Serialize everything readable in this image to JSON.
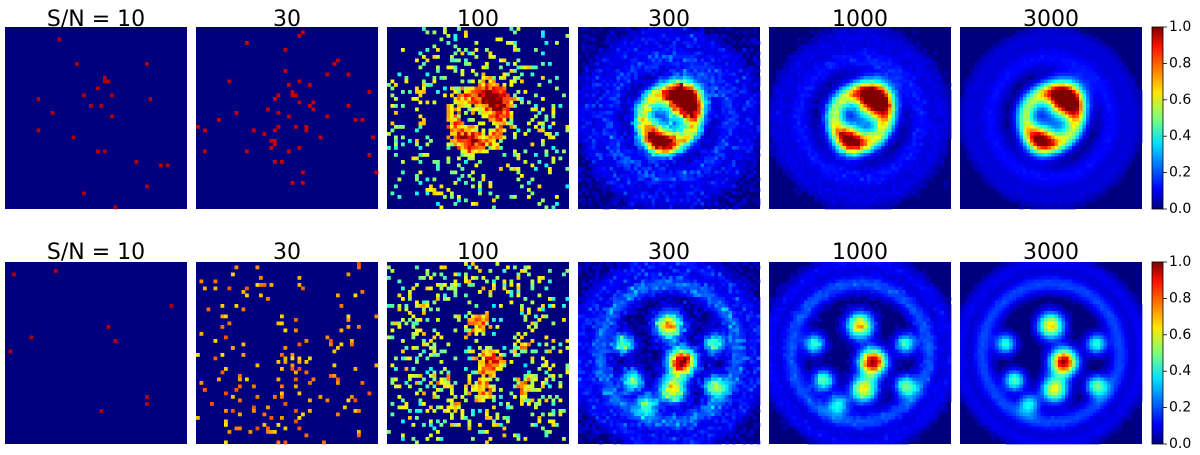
{
  "rows": [
    {
      "panels": [
        "S/N = 10",
        "30",
        "100",
        "300",
        "1000",
        "3000"
      ],
      "colorbar": {
        "range": [
          0,
          1
        ],
        "ticks": [
          {
            "value": 0,
            "label": "0.0"
          },
          {
            "value": 0.2,
            "label": "0.2"
          },
          {
            "value": 0.4,
            "label": "0.4"
          },
          {
            "value": 0.6,
            "label": "0.6"
          },
          {
            "value": 0.8,
            "label": "0.8"
          },
          {
            "value": 1,
            "label": "1.0"
          }
        ]
      }
    },
    {
      "panels": [
        "S/N = 10",
        "30",
        "100",
        "300",
        "1000",
        "3000"
      ],
      "colorbar": {
        "range": [
          0,
          1
        ],
        "ticks": [
          {
            "value": 0,
            "label": "0.0"
          },
          {
            "value": 0.2,
            "label": "0.2"
          },
          {
            "value": 0.4,
            "label": "0.4"
          },
          {
            "value": 0.6,
            "label": "0.6"
          },
          {
            "value": 0.8,
            "label": "0.8"
          },
          {
            "value": 1,
            "label": "1.0"
          }
        ]
      }
    }
  ]
}
